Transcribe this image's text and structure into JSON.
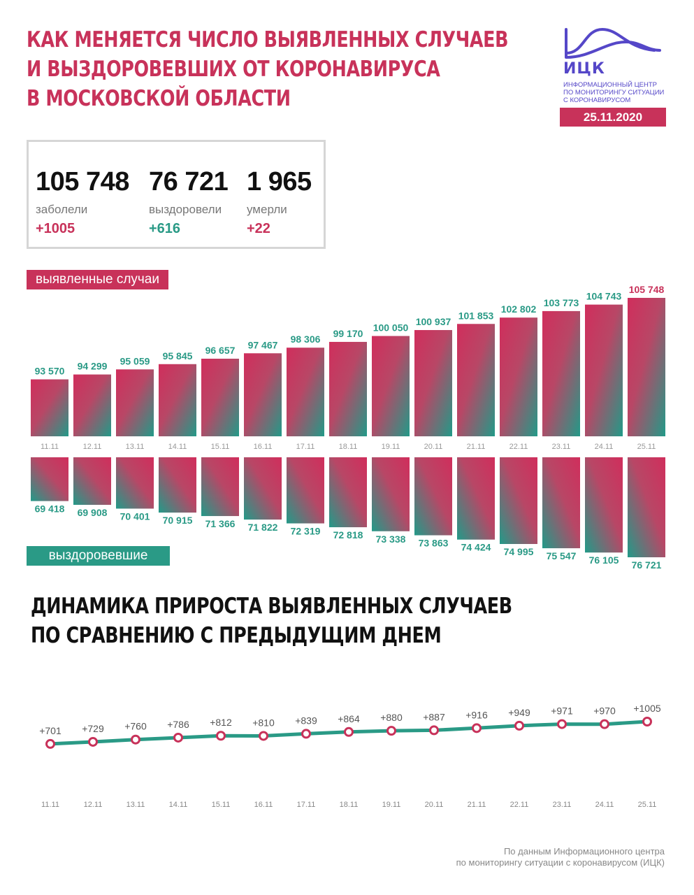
{
  "header": {
    "title_lines": [
      "КАК МЕНЯЕТСЯ ЧИСЛО ВЫЯВЛЕННЫХ СЛУЧАЕВ",
      "И ВЫЗДОРОВЕВШИХ ОТ КОРОНАВИРУСА",
      "В МОСКОВСКОЙ ОБЛАСТИ"
    ]
  },
  "logo": {
    "abbr": "ИЦК",
    "subtitle_lines": [
      "ИНФОРМАЦИОННЫЙ ЦЕНТР",
      "ПО МОНИТОРИНГУ СИТУАЦИИ",
      "С КОРОНАВИРУСОМ"
    ],
    "date": "25.11.2020"
  },
  "stats": {
    "cases": {
      "value": "105 748",
      "label": "заболели",
      "delta": "+1005"
    },
    "recovered": {
      "value": "76 721",
      "label": "выздоровели",
      "delta": "+616"
    },
    "deaths": {
      "value": "1 965",
      "label": "умерли",
      "delta": "+22"
    }
  },
  "labels": {
    "cases_pill": "выявленные случаи",
    "recovered_pill": "выздоровевшие"
  },
  "colors": {
    "accent_red": "#c8325a",
    "accent_teal": "#2a9a86"
  },
  "subtitle_lines": [
    "ДИНАМИКА ПРИРОСТА ВЫЯВЛЕННЫХ СЛУЧАЕВ",
    "ПО СРАВНЕНИЮ С ПРЕДЫДУЩИМ ДНЕМ"
  ],
  "source_lines": [
    "По данным Информационного центра",
    "по мониторингу ситуации с коронавирусом (ИЦК)"
  ],
  "chart_data": [
    {
      "type": "bar",
      "categories": [
        "11.11",
        "12.11",
        "13.11",
        "14.11",
        "15.11",
        "16.11",
        "17.11",
        "18.11",
        "19.11",
        "20.11",
        "21.11",
        "22.11",
        "23.11",
        "24.11",
        "25.11"
      ],
      "series": [
        {
          "name": "выявленные случаи",
          "values": [
            93570,
            94299,
            95059,
            95845,
            96657,
            97467,
            98306,
            99170,
            100050,
            100937,
            101853,
            102802,
            103773,
            104743,
            105748
          ],
          "labels": [
            "93 570",
            "94 299",
            "95 059",
            "95 845",
            "96 657",
            "97 467",
            "98 306",
            "99 170",
            "100 050",
            "100 937",
            "101 853",
            "102 802",
            "103 773",
            "104 743",
            "105 748"
          ]
        },
        {
          "name": "выздоровевшие",
          "values": [
            69418,
            69908,
            70401,
            70915,
            71366,
            71822,
            72319,
            72818,
            73338,
            73863,
            74424,
            74995,
            75547,
            76105,
            76721
          ],
          "labels": [
            "69 418",
            "69 908",
            "70 401",
            "70 915",
            "71 366",
            "71 822",
            "72 319",
            "72 818",
            "73 338",
            "73 863",
            "74 424",
            "74 995",
            "75 547",
            "76 105",
            "76 721"
          ]
        }
      ]
    },
    {
      "type": "line",
      "categories": [
        "11.11",
        "12.11",
        "13.11",
        "14.11",
        "15.11",
        "16.11",
        "17.11",
        "18.11",
        "19.11",
        "20.11",
        "21.11",
        "22.11",
        "23.11",
        "24.11",
        "25.11"
      ],
      "series": [
        {
          "values": [
            701,
            729,
            760,
            786,
            812,
            810,
            839,
            864,
            880,
            887,
            916,
            949,
            971,
            970,
            1005
          ],
          "labels": [
            "+701",
            "+729",
            "+760",
            "+786",
            "+812",
            "+810",
            "+839",
            "+864",
            "+880",
            "+887",
            "+916",
            "+949",
            "+971",
            "+970",
            "+1005"
          ]
        }
      ]
    }
  ]
}
